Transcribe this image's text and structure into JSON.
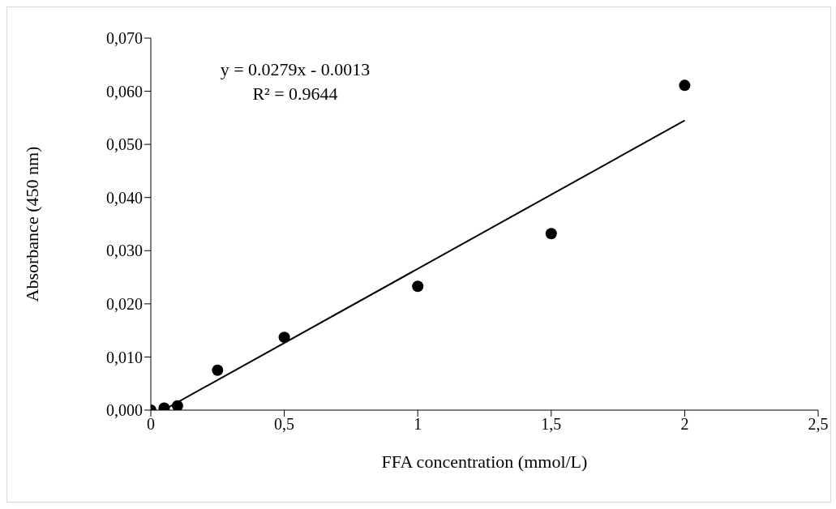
{
  "chart_data": {
    "type": "scatter",
    "xlabel": "FFA concentration (mmol/L)",
    "ylabel": "Absorbance (450 nm)",
    "annotations": [
      "y = 0.0279x - 0.0013",
      "R² = 0.9644"
    ],
    "xlim": [
      0,
      2.5
    ],
    "xticks": [
      0,
      {
        "value": 0.5,
        "label": "0,5"
      },
      1,
      {
        "value": 1.5,
        "label": "1,5"
      },
      2,
      {
        "value": 2.5,
        "label": "2,5"
      }
    ],
    "ylim": [
      0,
      0.07
    ],
    "yticks": [
      {
        "value": 0,
        "label": "0,000"
      },
      {
        "value": 0.01,
        "label": "0,010"
      },
      {
        "value": 0.02,
        "label": "0,020"
      },
      {
        "value": 0.03,
        "label": "0,030"
      },
      {
        "value": 0.04,
        "label": "0,040"
      },
      {
        "value": 0.05,
        "label": "0,050"
      },
      {
        "value": 0.06,
        "label": "0,060"
      },
      {
        "value": 0.07,
        "label": "0,070"
      }
    ],
    "grid": false,
    "series": [
      {
        "marker": "circle",
        "color": "#000000",
        "x": [
          0,
          0.05,
          0.1,
          0.25,
          0.5,
          1,
          1.5,
          2
        ],
        "values": [
          0,
          0.0004,
          0.0008,
          0.0075,
          0.0137,
          0.0233,
          0.0332,
          0.0611
        ]
      },
      {
        "type": "line",
        "color": "#000000",
        "line_style": "solid",
        "x": [
          0.047,
          2
        ],
        "values": [
          0,
          0.0545
        ]
      }
    ]
  }
}
